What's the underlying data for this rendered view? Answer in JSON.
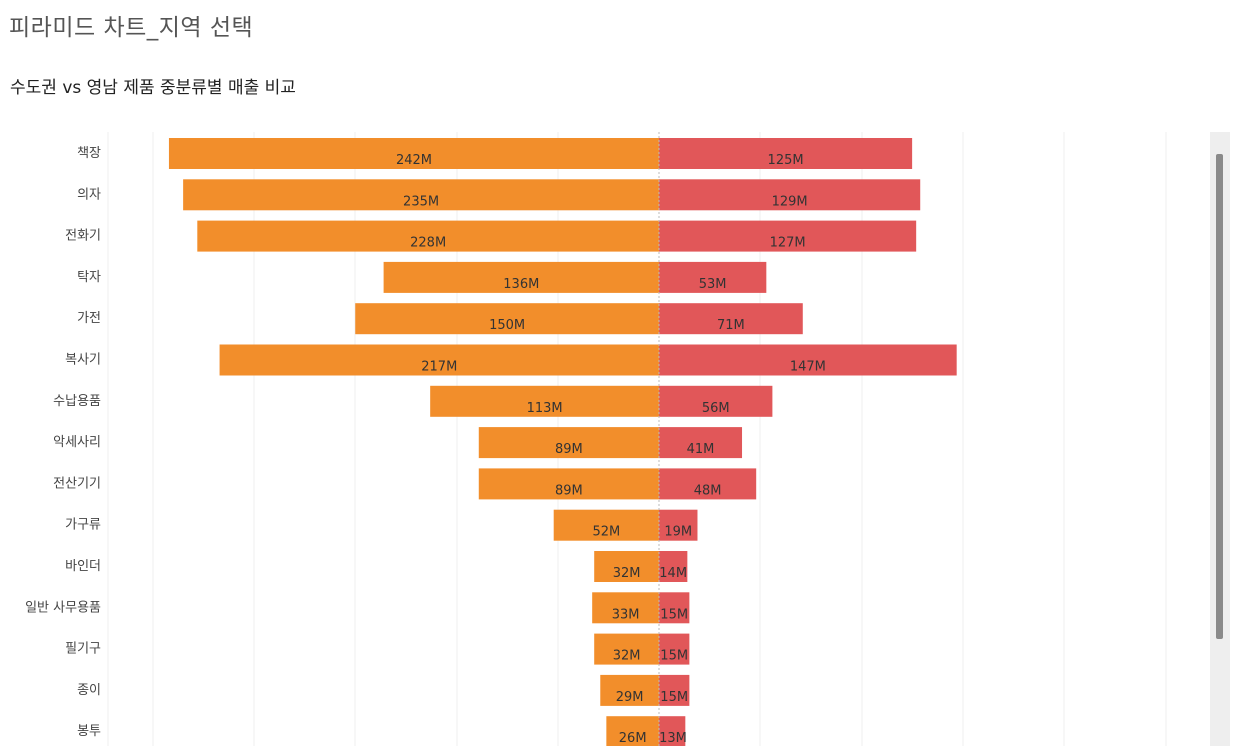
{
  "page": {
    "title": "피라미드 차트_지역 선택",
    "subtitle": "수도권 vs 영남 제품 중분류별 매출 비교"
  },
  "colors": {
    "left_series": "#F28E2B",
    "right_series": "#E15759",
    "grid": "#EFEFEF",
    "center_line": "#BBBBBB"
  },
  "chart_data": {
    "type": "bar",
    "orientation": "horizontal-diverging",
    "title": "수도권 vs 영남 제품 중분류별 매출 비교",
    "categories": [
      "책장",
      "의자",
      "전화기",
      "탁자",
      "가전",
      "복사기",
      "수납용품",
      "악세사리",
      "전산기기",
      "가구류",
      "바인더",
      "일반 사무용품",
      "필기구",
      "종이",
      "봉투"
    ],
    "series": [
      {
        "side": "left",
        "color": "#F28E2B",
        "values": [
          242,
          235,
          228,
          136,
          150,
          217,
          113,
          89,
          89,
          52,
          32,
          33,
          32,
          29,
          26
        ],
        "labels": [
          "242M",
          "235M",
          "228M",
          "136M",
          "150M",
          "217M",
          "113M",
          "89M",
          "89M",
          "52M",
          "32M",
          "33M",
          "32M",
          "29M",
          "26M"
        ]
      },
      {
        "side": "right",
        "color": "#E15759",
        "values": [
          125,
          129,
          127,
          53,
          71,
          147,
          56,
          41,
          48,
          19,
          14,
          15,
          15,
          15,
          13
        ],
        "labels": [
          "125M",
          "129M",
          "127M",
          "53M",
          "71M",
          "147M",
          "56M",
          "41M",
          "48M",
          "19M",
          "14M",
          "15M",
          "15M",
          "15M",
          "13M"
        ]
      }
    ],
    "unit": "M",
    "grid": true,
    "legend": "none"
  }
}
